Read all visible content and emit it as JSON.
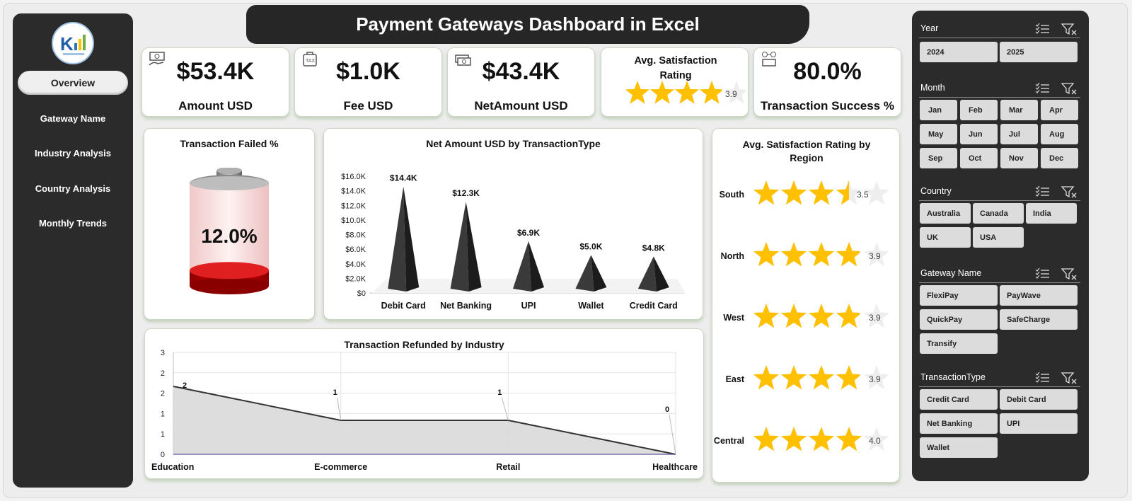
{
  "title": "Payment Gateways Dashboard in Excel",
  "nav": [
    {
      "label": "Overview",
      "active": true
    },
    {
      "label": "Gateway Name"
    },
    {
      "label": "Industry Analysis"
    },
    {
      "label": "Country  Analysis"
    },
    {
      "label": "Monthly Trends"
    }
  ],
  "kpis": [
    {
      "value": "$53.4K",
      "label": "Amount USD",
      "icon": "money-icon"
    },
    {
      "value": "$1.0K",
      "label": "Fee USD",
      "icon": "tax-icon"
    },
    {
      "value": "$43.4K",
      "label": "NetAmount USD",
      "icon": "cash-icon"
    },
    {
      "value": "3.9",
      "label": "Avg. Satisfaction Rating",
      "rating": 3.9
    },
    {
      "value": "80.0%",
      "label": "Transaction Success %",
      "icon": "exchange-icon"
    }
  ],
  "failed": {
    "title": "Transaction Failed %",
    "value": "12.0%",
    "fraction": 0.12
  },
  "chart_data": [
    {
      "type": "bar",
      "title": "Net Amount USD by TransactionType",
      "categories": [
        "Debit Card",
        "Net Banking",
        "UPI",
        "Wallet",
        "Credit Card"
      ],
      "values": [
        14400,
        12300,
        6900,
        5000,
        4800
      ],
      "labels": [
        "$14.4K",
        "$12.3K",
        "$6.9K",
        "$5.0K",
        "$4.8K"
      ],
      "ylim": [
        0,
        16000
      ],
      "yticks": [
        "$0",
        "$2.0K",
        "$4.0K",
        "$6.0K",
        "$8.0K",
        "$10.0K",
        "$12.0K",
        "$14.0K",
        "$16.0K"
      ],
      "grid": false
    },
    {
      "type": "area",
      "title": "Transaction Refunded by Industry",
      "categories": [
        "Education",
        "E-commerce",
        "Retail",
        "Healthcare"
      ],
      "values": [
        2,
        1,
        1,
        0
      ],
      "ylim": [
        0,
        3
      ],
      "yticks": [
        "0",
        "1",
        "1",
        "2",
        "2",
        "3"
      ],
      "grid": true
    },
    {
      "type": "bar",
      "title": "Avg. Satisfaction Rating by Region",
      "categories": [
        "South",
        "North",
        "West",
        "East",
        "Central"
      ],
      "values": [
        3.5,
        3.9,
        3.9,
        3.9,
        4.0
      ],
      "labels": [
        "3.5",
        "3.9",
        "3.9",
        "3.9",
        "4.0"
      ],
      "max": 5
    }
  ],
  "slicers": [
    {
      "title": "Year",
      "items": [
        "2024",
        "2025"
      ]
    },
    {
      "title": "Month",
      "items": [
        "Jan",
        "Feb",
        "Mar",
        "Apr",
        "May",
        "Jun",
        "Jul",
        "Aug",
        "Sep",
        "Oct",
        "Nov",
        "Dec"
      ]
    },
    {
      "title": "Country",
      "items": [
        "Australia",
        "Canada",
        "India",
        "UK",
        "USA"
      ]
    },
    {
      "title": "Gateway Name",
      "items": [
        "FlexiPay",
        "PayWave",
        "QuickPay",
        "SafeCharge",
        "Transify"
      ]
    },
    {
      "title": "TransactionType",
      "items": [
        "Credit Card",
        "Debit Card",
        "Net Banking",
        "UPI",
        "Wallet"
      ]
    }
  ],
  "colors": {
    "star": "#ffc000",
    "star_empty": "#eeeeee",
    "panel": "#2b2b2b",
    "battery_fill": "#cc0000"
  }
}
